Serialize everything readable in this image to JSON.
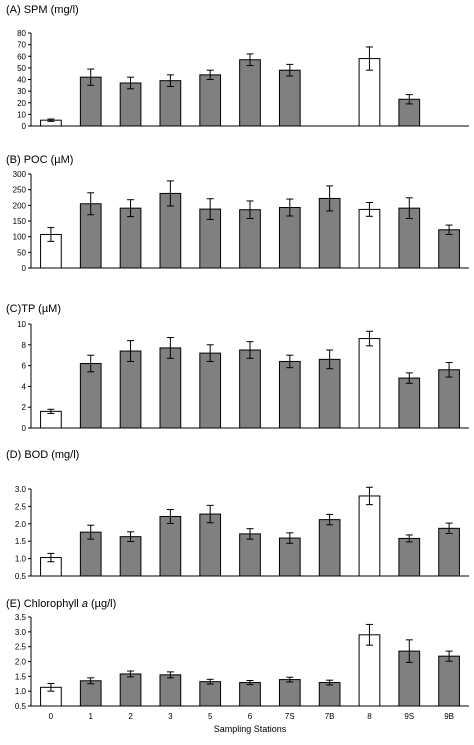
{
  "x_axis_title": "Sampling Stations",
  "categories": [
    "0",
    "1",
    "2",
    "3",
    "5",
    "6",
    "7S",
    "7B",
    "8",
    "9S",
    "9B"
  ],
  "colors": {
    "open_bar": "#ffffff",
    "filled_bar": "#808080",
    "axis": "#000000"
  },
  "chart_data": [
    {
      "type": "bar",
      "title": "(A) SPM (mg/l)",
      "categories": [
        "0",
        "1",
        "2",
        "3",
        "5",
        "6",
        "7S",
        "7B",
        "8",
        "9S",
        "9B"
      ],
      "values": [
        5,
        42,
        37,
        39,
        44,
        57,
        48,
        null,
        58,
        23,
        null
      ],
      "errors": [
        1,
        7,
        5,
        5,
        4,
        5,
        5,
        null,
        10,
        4,
        null
      ],
      "open_bars": [
        0,
        8
      ],
      "ylim": [
        0,
        80
      ],
      "yticks": [
        0,
        10,
        20,
        30,
        40,
        50,
        60,
        70,
        80
      ]
    },
    {
      "type": "bar",
      "title": "(B) POC (µM)",
      "categories": [
        "0",
        "1",
        "2",
        "3",
        "5",
        "6",
        "7S",
        "7B",
        "8",
        "9S",
        "9B"
      ],
      "values": [
        107,
        205,
        191,
        238,
        188,
        186,
        193,
        222,
        187,
        191,
        122
      ],
      "errors": [
        22,
        35,
        27,
        40,
        33,
        28,
        27,
        40,
        22,
        33,
        15
      ],
      "open_bars": [
        0,
        8
      ],
      "ylim": [
        0,
        300
      ],
      "yticks": [
        0,
        50,
        100,
        150,
        200,
        250,
        300
      ]
    },
    {
      "type": "bar",
      "title": "(C)TP (µM)",
      "categories": [
        "0",
        "1",
        "2",
        "3",
        "5",
        "6",
        "7S",
        "7B",
        "8",
        "9S",
        "9B"
      ],
      "values": [
        1.6,
        6.2,
        7.4,
        7.7,
        7.2,
        7.5,
        6.4,
        6.6,
        8.6,
        4.8,
        5.6
      ],
      "errors": [
        0.2,
        0.8,
        1.0,
        1.0,
        0.8,
        0.8,
        0.6,
        0.9,
        0.7,
        0.5,
        0.7
      ],
      "open_bars": [
        0,
        8
      ],
      "ylim": [
        0,
        10
      ],
      "yticks": [
        0,
        2,
        4,
        6,
        8,
        10
      ]
    },
    {
      "type": "bar",
      "title": "(D) BOD (mg/l)",
      "categories": [
        "0",
        "1",
        "2",
        "3",
        "5",
        "6",
        "7S",
        "7B",
        "8",
        "9S",
        "9B"
      ],
      "values": [
        1.03,
        1.76,
        1.63,
        2.21,
        2.28,
        1.71,
        1.59,
        2.12,
        2.8,
        1.58,
        1.87
      ],
      "errors": [
        0.12,
        0.2,
        0.14,
        0.2,
        0.25,
        0.15,
        0.15,
        0.15,
        0.25,
        0.1,
        0.15
      ],
      "open_bars": [
        0,
        8
      ],
      "ylim": [
        0.5,
        3.0
      ],
      "yticks": [
        0.5,
        1.0,
        1.5,
        2.0,
        2.5,
        3.0
      ]
    },
    {
      "type": "bar",
      "title": "(E) Chlorophyll a  (µg/l)",
      "title_prefix": "(E) Chlorophyll ",
      "title_italic": "a",
      "title_suffix": "  (µg/l)",
      "categories": [
        "0",
        "1",
        "2",
        "3",
        "5",
        "6",
        "7S",
        "7B",
        "8",
        "9S",
        "9B"
      ],
      "values": [
        1.13,
        1.35,
        1.58,
        1.55,
        1.32,
        1.29,
        1.39,
        1.29,
        2.9,
        2.35,
        2.18
      ],
      "errors": [
        0.13,
        0.1,
        0.1,
        0.1,
        0.08,
        0.07,
        0.08,
        0.08,
        0.35,
        0.38,
        0.17
      ],
      "open_bars": [
        0,
        8
      ],
      "ylim": [
        0.5,
        3.5
      ],
      "yticks": [
        0.5,
        1.0,
        1.5,
        2.0,
        2.5,
        3.0,
        3.5
      ]
    }
  ]
}
